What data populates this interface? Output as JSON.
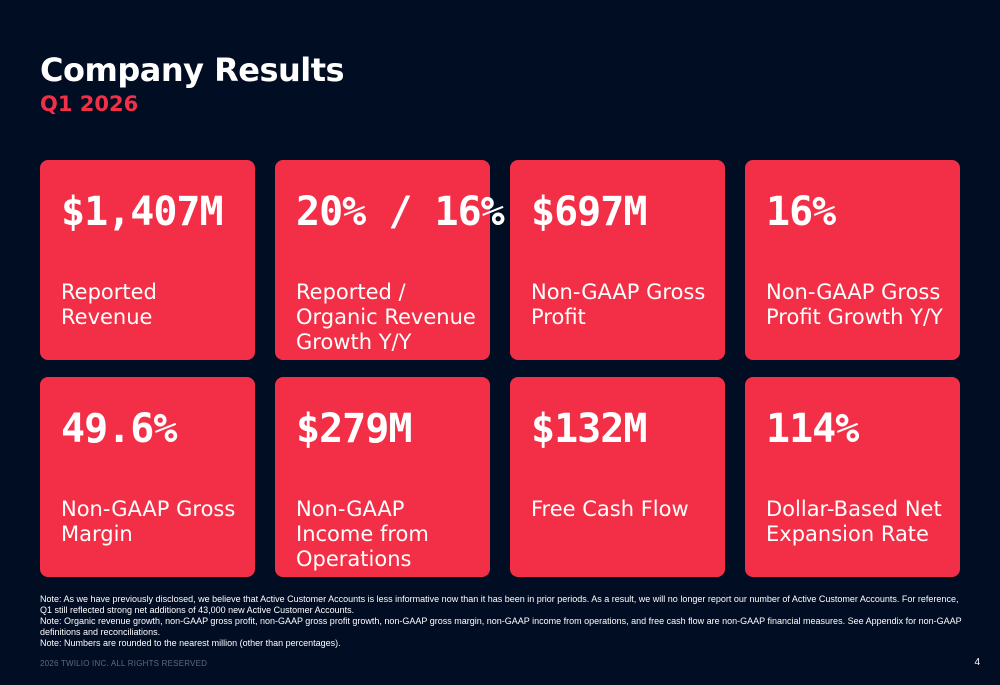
{
  "header": {
    "title": "Company Results",
    "subtitle": "Q1 2026"
  },
  "metrics": [
    {
      "value": "$1,407M",
      "label": "Reported Revenue"
    },
    {
      "value": "20% / 16%",
      "label": "Reported / Organic Revenue Growth Y/Y"
    },
    {
      "value": "$697M",
      "label": "Non-GAAP Gross Profit"
    },
    {
      "value": "16%",
      "label": "Non-GAAP Gross Profit Growth Y/Y"
    },
    {
      "value": "49.6%",
      "label": "Non-GAAP Gross Margin"
    },
    {
      "value": "$279M",
      "label": "Non-GAAP Income from Operations"
    },
    {
      "value": "$132M",
      "label": "Free Cash Flow"
    },
    {
      "value": "114%",
      "label": "Dollar-Based Net Expansion Rate"
    }
  ],
  "notes": [
    "Note: As we have previously disclosed, we believe that Active Customer Accounts is less informative now than it has been in prior periods. As a result, we will no longer report our number of Active Customer Accounts. For reference, Q1 still reflected strong net additions of 43,000 new Active Customer Accounts.",
    "Note: Organic revenue growth, non-GAAP gross profit, non-GAAP gross profit growth, non-GAAP gross margin, non-GAAP income from operations, and free cash flow are non-GAAP financial measures. See Appendix for non-GAAP definitions and reconciliations.",
    "Note: Numbers are rounded to the nearest million (other than percentages)."
  ],
  "footer": {
    "copyright": "2026 TWILIO INC. ALL RIGHTS RESERVED",
    "page_number": "4"
  },
  "colors": {
    "background": "#000d23",
    "card": "#f22f46",
    "accent_text": "#f22f46"
  }
}
